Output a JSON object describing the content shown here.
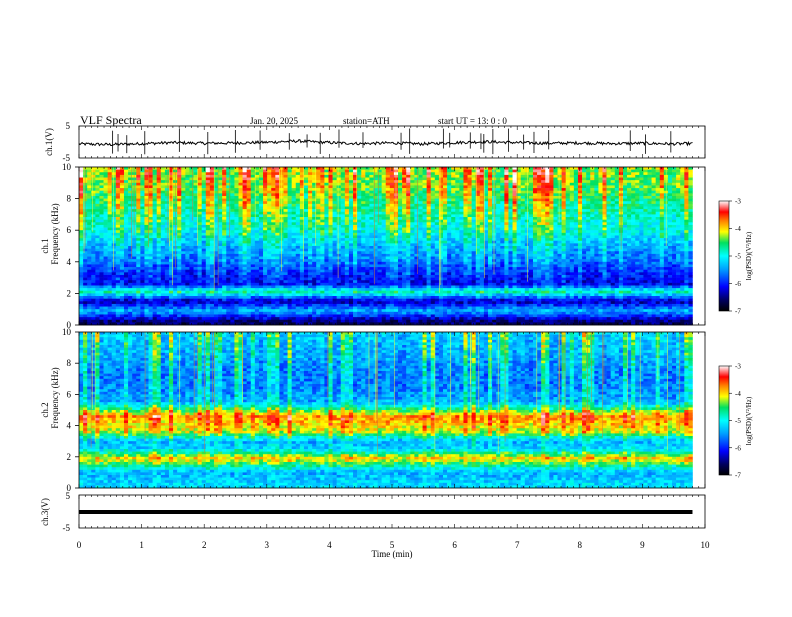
{
  "header": {
    "title": "VLF  Spectra",
    "date": "Jan. 20, 2025",
    "station": "station=ATH",
    "start_ut": "start  UT  =   13: 0  : 0"
  },
  "chart_data": [
    {
      "type": "line",
      "panel": "ch1-waveform",
      "ylabel": "ch.1(V)",
      "ylim": [
        -5,
        5
      ],
      "yticks": [
        "5",
        "-5"
      ],
      "xlim": [
        0,
        10
      ],
      "x": [
        0,
        0.5,
        1,
        1.5,
        2,
        2.5,
        3,
        3.5,
        4,
        4.5,
        5,
        5.5,
        6,
        6.5,
        7,
        7.5,
        8,
        8.5,
        9,
        9.5,
        9.8
      ],
      "y": [
        -0.6,
        -0.8,
        -0.5,
        -0.2,
        -0.4,
        -0.3,
        -0.1,
        0.3,
        -0.2,
        -0.5,
        -0.3,
        -0.6,
        -0.2,
        0.1,
        -0.2,
        -0.4,
        -0.3,
        -0.5,
        -0.4,
        -0.6,
        -0.5
      ],
      "color": "#000000"
    },
    {
      "type": "heatmap",
      "panel": "ch1-spectrogram",
      "ylabel_top": "ch.1",
      "ylabel": "Frequency  (kHz)",
      "ylim": [
        0,
        10
      ],
      "yticks": [
        "0",
        "2",
        "4",
        "6",
        "8",
        "10"
      ],
      "xlim": [
        0,
        10
      ],
      "colorbar": {
        "label": "log(PSD)(V²/Hz)",
        "range": [
          -7,
          -3
        ],
        "ticks": [
          "-3",
          "-4",
          "-5",
          "-6",
          "-7"
        ]
      },
      "intensity_by_frequency_khz": [
        [
          0.2,
          -6.6
        ],
        [
          0.9,
          -5.4
        ],
        [
          1.5,
          -6.4
        ],
        [
          2.1,
          -4.8
        ],
        [
          2.6,
          -6.2
        ],
        [
          3.3,
          -6.0
        ],
        [
          4.0,
          -5.7
        ],
        [
          5.0,
          -5.4
        ],
        [
          6.0,
          -5.0
        ],
        [
          7.0,
          -4.8
        ],
        [
          8.0,
          -4.6
        ],
        [
          9.0,
          -4.4
        ],
        [
          10.0,
          -4.3
        ]
      ]
    },
    {
      "type": "heatmap",
      "panel": "ch2-spectrogram",
      "ylabel_top": "ch.2",
      "ylabel": "Frequency  (kHz)",
      "ylim": [
        0,
        10
      ],
      "yticks": [
        "0",
        "2",
        "4",
        "6",
        "8",
        "10"
      ],
      "xlim": [
        0,
        10
      ],
      "colorbar": {
        "label": "log(PSD)(V²/Hz)",
        "range": [
          -7,
          -3
        ],
        "ticks": [
          "-3",
          "-4",
          "-5",
          "-6",
          "-7"
        ]
      },
      "intensity_by_frequency_khz": [
        [
          0.3,
          -5.2
        ],
        [
          1.0,
          -5.4
        ],
        [
          1.9,
          -4.0
        ],
        [
          2.5,
          -5.2
        ],
        [
          3.0,
          -5.4
        ],
        [
          3.6,
          -4.2
        ],
        [
          4.6,
          -3.8
        ],
        [
          5.5,
          -5.4
        ],
        [
          6.5,
          -5.6
        ],
        [
          7.5,
          -5.6
        ],
        [
          8.5,
          -5.4
        ],
        [
          9.5,
          -5.3
        ],
        [
          10.0,
          -5.2
        ]
      ]
    },
    {
      "type": "line",
      "panel": "ch3-waveform",
      "ylabel": "ch.3(V)",
      "ylim": [
        -5,
        5
      ],
      "yticks": [
        "5",
        "-5"
      ],
      "xlim": [
        0,
        10
      ],
      "x": [
        0,
        9.8
      ],
      "y": [
        0,
        0
      ],
      "color": "#000000"
    }
  ],
  "x_axis": {
    "label": "Time  (min)",
    "ticks": [
      "0",
      "1",
      "2",
      "3",
      "4",
      "5",
      "6",
      "7",
      "8",
      "9",
      "10"
    ]
  }
}
